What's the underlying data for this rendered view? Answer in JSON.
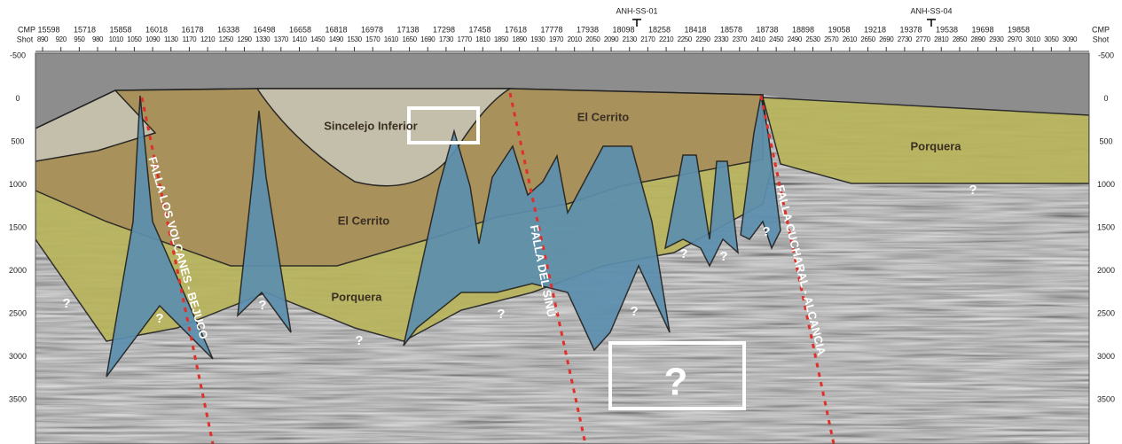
{
  "header": {
    "cmp_label": "CMP",
    "shot_label": "Shot",
    "cmp_ticks": [
      15598,
      15718,
      15858,
      16018,
      16178,
      16338,
      16498,
      16658,
      16818,
      16978,
      17138,
      17298,
      17458,
      17618,
      17778,
      17938,
      18098,
      18258,
      18418,
      18578,
      18738,
      18898,
      19058,
      19218,
      19378,
      19538,
      19698,
      19858
    ],
    "shot_ticks": [
      890,
      920,
      950,
      980,
      1010,
      1050,
      1090,
      1130,
      1170,
      1210,
      1250,
      1290,
      1330,
      1370,
      1410,
      1450,
      1490,
      1530,
      1570,
      1610,
      1650,
      1690,
      1730,
      1770,
      1810,
      1850,
      1890,
      1930,
      1970,
      2010,
      2050,
      2090,
      2130,
      2170,
      2210,
      2250,
      2290,
      2330,
      2370,
      2410,
      2450,
      2490,
      2530,
      2570,
      2610,
      2650,
      2690,
      2730,
      2770,
      2810,
      2850,
      2890,
      2930,
      2970,
      3010,
      3050,
      3090
    ],
    "wells": [
      "ANH-SS-01",
      "ANH-SS-04"
    ]
  },
  "depth_ticks": [
    -500,
    0,
    500,
    1000,
    1500,
    2000,
    2500,
    3000,
    3500
  ],
  "formations": [
    "Sincelejo Inferior",
    "El Cerrito",
    "El Cerrito",
    "Porquera",
    "Porquera"
  ],
  "faults": [
    "FALLA LOS VOLCANES - BEJUCO",
    "FALLA DEL SINÚ",
    "FALLA CUCHARAL - ALCANCIA"
  ],
  "unknowns": [
    "?",
    "?",
    "?",
    "?",
    "?",
    "?",
    "?",
    "?",
    "?",
    "?",
    "?"
  ]
}
